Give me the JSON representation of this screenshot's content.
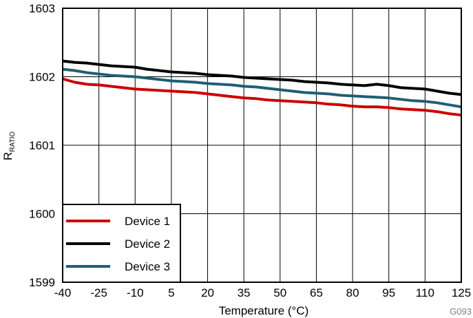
{
  "chart_data": {
    "type": "line",
    "title": "",
    "xlabel": "Temperature (°C)",
    "ylabel_main": "R",
    "ylabel_sub": "RATIO",
    "xlim": [
      -40,
      125
    ],
    "ylim": [
      1599,
      1603
    ],
    "x_ticks": [
      -40,
      -25,
      -10,
      5,
      20,
      35,
      50,
      65,
      80,
      95,
      110,
      125
    ],
    "y_ticks": [
      1599,
      1600,
      1601,
      1602,
      1603
    ],
    "grid": true,
    "legend_position": "bottom-left",
    "figure_id": "G093",
    "series": [
      {
        "name": "Device 1",
        "color": "#cc0000",
        "x": [
          -40,
          -35,
          -30,
          -25,
          -20,
          -15,
          -10,
          -5,
          0,
          5,
          10,
          15,
          20,
          25,
          30,
          35,
          40,
          45,
          50,
          55,
          60,
          65,
          70,
          75,
          80,
          85,
          90,
          95,
          100,
          105,
          110,
          115,
          120,
          125
        ],
        "y": [
          1601.97,
          1601.92,
          1601.89,
          1601.88,
          1601.86,
          1601.84,
          1601.82,
          1601.81,
          1601.8,
          1601.79,
          1601.78,
          1601.77,
          1601.75,
          1601.73,
          1601.71,
          1601.69,
          1601.68,
          1601.66,
          1601.65,
          1601.64,
          1601.63,
          1601.62,
          1601.6,
          1601.59,
          1601.57,
          1601.56,
          1601.56,
          1601.55,
          1601.53,
          1601.52,
          1601.51,
          1601.49,
          1601.46,
          1601.44
        ]
      },
      {
        "name": "Device 2",
        "color": "#000000",
        "x": [
          -40,
          -35,
          -30,
          -25,
          -20,
          -15,
          -10,
          -5,
          0,
          5,
          10,
          15,
          20,
          25,
          30,
          35,
          40,
          45,
          50,
          55,
          60,
          65,
          70,
          75,
          80,
          85,
          90,
          95,
          100,
          105,
          110,
          115,
          120,
          125
        ],
        "y": [
          1602.23,
          1602.21,
          1602.2,
          1602.18,
          1602.16,
          1602.15,
          1602.14,
          1602.11,
          1602.09,
          1602.07,
          1602.06,
          1602.05,
          1602.03,
          1602.02,
          1602.01,
          1601.99,
          1601.98,
          1601.97,
          1601.96,
          1601.95,
          1601.93,
          1601.92,
          1601.91,
          1601.89,
          1601.88,
          1601.87,
          1601.89,
          1601.87,
          1601.84,
          1601.83,
          1601.82,
          1601.79,
          1601.76,
          1601.74
        ]
      },
      {
        "name": "Device 3",
        "color": "#1f5f73",
        "x": [
          -40,
          -35,
          -30,
          -25,
          -20,
          -15,
          -10,
          -5,
          0,
          5,
          10,
          15,
          20,
          25,
          30,
          35,
          40,
          45,
          50,
          55,
          60,
          65,
          70,
          75,
          80,
          85,
          90,
          95,
          100,
          105,
          110,
          115,
          120,
          125
        ],
        "y": [
          1602.11,
          1602.09,
          1602.06,
          1602.04,
          1602.02,
          1602.01,
          1602.0,
          1601.98,
          1601.96,
          1601.94,
          1601.93,
          1601.92,
          1601.9,
          1601.89,
          1601.88,
          1601.86,
          1601.85,
          1601.83,
          1601.81,
          1601.79,
          1601.77,
          1601.76,
          1601.75,
          1601.73,
          1601.72,
          1601.71,
          1601.7,
          1601.69,
          1601.67,
          1601.65,
          1601.64,
          1601.62,
          1601.59,
          1601.56
        ]
      }
    ]
  }
}
